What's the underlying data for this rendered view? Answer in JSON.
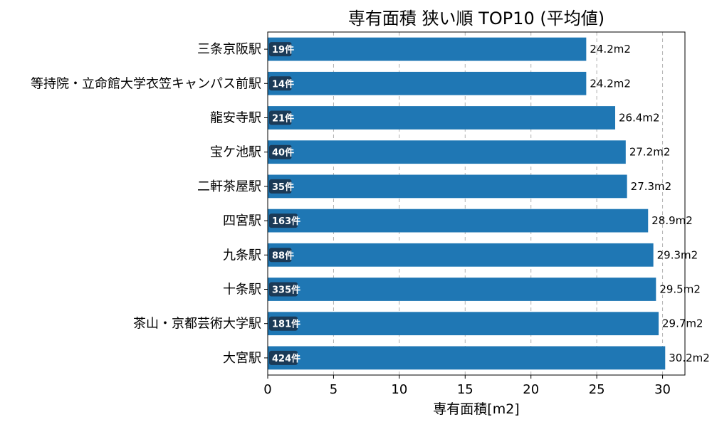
{
  "chart_data": {
    "type": "bar",
    "orientation": "horizontal",
    "title": "専有面積 狭い順 TOP10 (平均値)",
    "xlabel": "専有面積[m2]",
    "ylabel": "",
    "xlim": [
      0,
      31.7
    ],
    "xticks": [
      0,
      5,
      10,
      15,
      20,
      25,
      30
    ],
    "grid": "x-dashed",
    "bar_color": "#1f77b4",
    "badge_color": "#1b3a57",
    "categories": [
      "三条京阪駅",
      "等持院・立命館大学衣笠キャンパス前駅",
      "龍安寺駅",
      "宝ケ池駅",
      "二軒茶屋駅",
      "四宮駅",
      "九条駅",
      "十条駅",
      "茶山・京都芸術大学駅",
      "大宮駅"
    ],
    "values": [
      24.2,
      24.2,
      26.4,
      27.2,
      27.3,
      28.9,
      29.3,
      29.5,
      29.7,
      30.2
    ],
    "value_labels": [
      "24.2m2",
      "24.2m2",
      "26.4m2",
      "27.2m2",
      "27.3m2",
      "28.9m2",
      "29.3m2",
      "29.5m2",
      "29.7m2",
      "30.2m2"
    ],
    "counts": [
      "19件",
      "14件",
      "21件",
      "40件",
      "35件",
      "163件",
      "88件",
      "335件",
      "181件",
      "424件"
    ]
  }
}
